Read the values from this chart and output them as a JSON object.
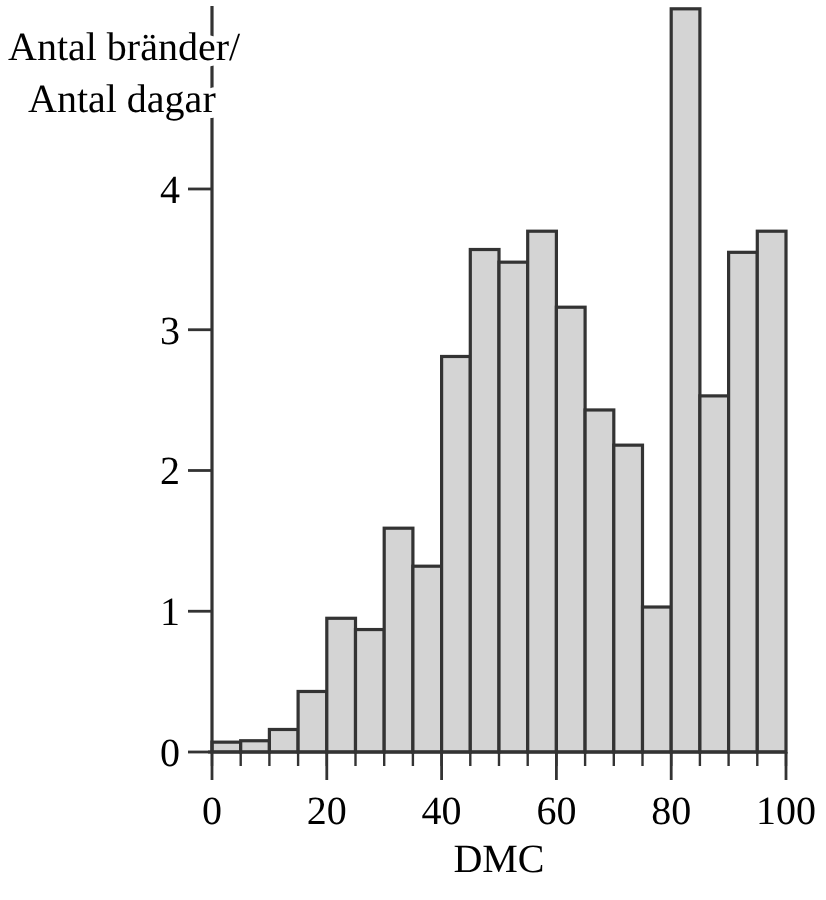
{
  "chart_data": {
    "type": "histogram",
    "ylabel": "Antal bränder/\nAntal dagar",
    "xlabel": "DMC",
    "bins": [
      0,
      5,
      10,
      15,
      20,
      25,
      30,
      35,
      40,
      45,
      50,
      55,
      60,
      65,
      70,
      75,
      80,
      85,
      90,
      95,
      100
    ],
    "values": [
      0.07,
      0.08,
      0.16,
      0.43,
      0.95,
      0.87,
      1.59,
      1.32,
      2.81,
      3.57,
      3.48,
      3.7,
      3.16,
      2.43,
      2.18,
      1.03,
      5.28,
      2.53,
      3.55,
      3.7
    ],
    "color": "#d4d4d4",
    "xlim": [
      0,
      100
    ],
    "xticks": [
      0,
      20,
      40,
      60,
      80,
      100
    ],
    "ylim": [
      0,
      5.3
    ],
    "yticks": [
      0,
      1,
      2,
      3,
      4
    ]
  }
}
